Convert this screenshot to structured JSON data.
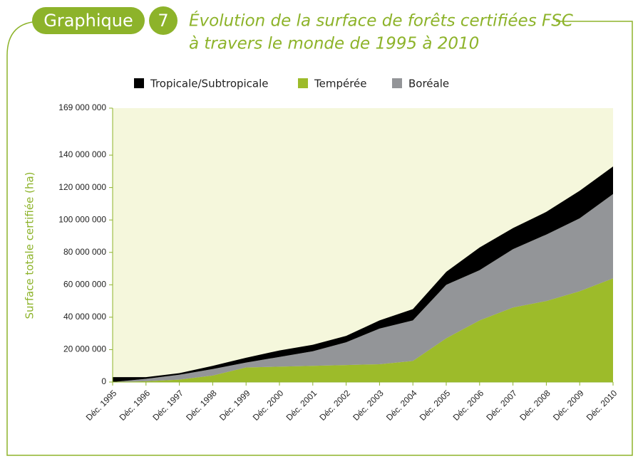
{
  "chart_data": {
    "type": "stacked_area",
    "figure_label": "Graphique",
    "figure_number": 7,
    "title": [
      "Évolution de la surface de forêts certifiées FSC",
      "à travers le monde de 1995 à 2010"
    ],
    "y_label": "Surface totale certifiée (ha)",
    "categories": [
      "Déc. 1995",
      "Déc. 1996",
      "Déc. 1997",
      "Déc. 1998",
      "Déc. 1999",
      "Déc. 2000",
      "Déc. 2001",
      "Déc. 2002",
      "Déc. 2003",
      "Déc. 2004",
      "Déc. 2005",
      "Déc. 2006",
      "Déc. 2007",
      "Déc. 2008",
      "Déc. 2009",
      "Déc. 2010"
    ],
    "series": [
      {
        "name": "Tempérée",
        "color": "#9dbb2a",
        "values": [
          0,
          500000,
          1500000,
          4000000,
          9000000,
          9500000,
          10000000,
          10500000,
          11000000,
          13000000,
          27000000,
          38000000,
          46000000,
          50000000,
          56000000,
          64000000
        ]
      },
      {
        "name": "Boréale",
        "color": "#939598",
        "values": [
          0,
          1500000,
          3000000,
          4000000,
          3000000,
          6000000,
          9000000,
          14000000,
          22000000,
          25000000,
          33000000,
          31000000,
          36000000,
          41000000,
          45000000,
          52000000
        ]
      },
      {
        "name": "Tropicale/Subtropicale",
        "color": "#000000",
        "values": [
          3000000,
          1000000,
          1000000,
          2000000,
          3000000,
          4000000,
          4000000,
          4000000,
          5000000,
          7000000,
          8000000,
          14000000,
          13000000,
          14000000,
          17000000,
          17000000
        ]
      }
    ],
    "ylim": [
      0,
      169000000
    ],
    "yticks": [
      {
        "value": 0,
        "label": "0"
      },
      {
        "value": 20000000,
        "label": "20 000 000"
      },
      {
        "value": 40000000,
        "label": "40 000 000"
      },
      {
        "value": 60000000,
        "label": "60 000 000"
      },
      {
        "value": 80000000,
        "label": "80 000 000"
      },
      {
        "value": 100000000,
        "label": "100 000 000"
      },
      {
        "value": 120000000,
        "label": "120 000 000"
      },
      {
        "value": 140000000,
        "label": "140 000 000"
      },
      {
        "value": 169000000,
        "label": "169 000 000"
      }
    ],
    "grid": false
  }
}
